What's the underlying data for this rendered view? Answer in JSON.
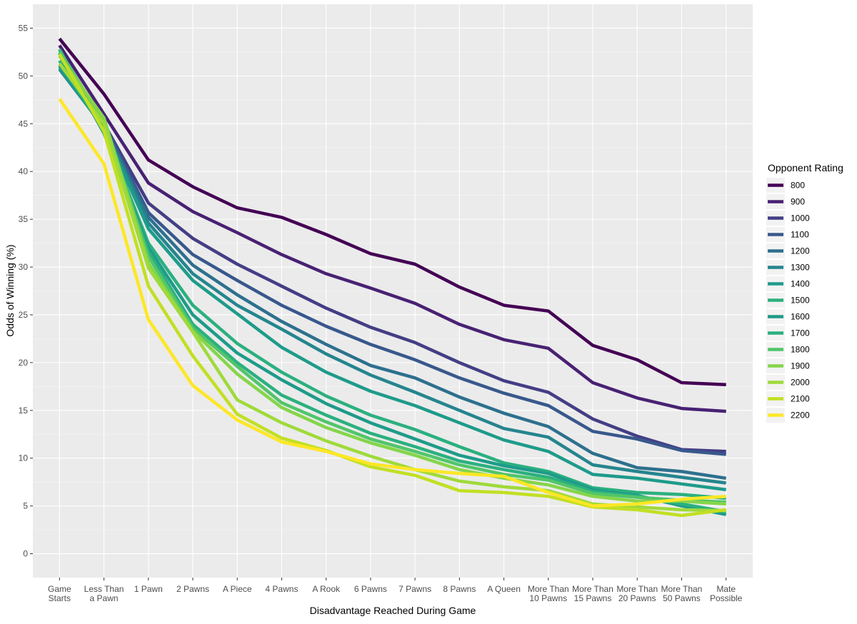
{
  "chart_data": {
    "type": "line",
    "xlabel": "Disadvantage Reached During Game",
    "ylabel": "Odds of Winning (%)",
    "ylim": [
      -2.5,
      57.5
    ],
    "yticks": [
      0,
      5,
      10,
      15,
      20,
      25,
      30,
      35,
      40,
      45,
      50,
      55
    ],
    "grid": true,
    "legend_title": "Opponent Rating",
    "legend_position": "right",
    "categories": [
      [
        "Game",
        "Starts"
      ],
      [
        "Less Than",
        "a Pawn"
      ],
      [
        "1 Pawn"
      ],
      [
        "2 Pawns"
      ],
      [
        "A Piece"
      ],
      [
        "4 Pawns"
      ],
      [
        "A Rook"
      ],
      [
        "6 Pawns"
      ],
      [
        "7 Pawns"
      ],
      [
        "8 Pawns"
      ],
      [
        "A Queen"
      ],
      [
        "More Than",
        "10 Pawns"
      ],
      [
        "More Than",
        "15 Pawns"
      ],
      [
        "More Than",
        "20 Pawns"
      ],
      [
        "More Than",
        "50 Pawns"
      ],
      [
        "Mate",
        "Possible"
      ]
    ],
    "series": [
      {
        "name": "800",
        "color": "#440154",
        "values": [
          53.9,
          48.1,
          41.2,
          38.4,
          36.2,
          35.2,
          33.4,
          31.4,
          30.3,
          27.9,
          26.0,
          25.4,
          21.8,
          20.3,
          17.9,
          17.7
        ]
      },
      {
        "name": "900",
        "color": "#482173",
        "values": [
          53.2,
          46.0,
          38.8,
          35.8,
          33.6,
          31.3,
          29.3,
          27.8,
          26.2,
          24.0,
          22.4,
          21.5,
          17.9,
          16.3,
          15.2,
          14.9
        ]
      },
      {
        "name": "1000",
        "color": "#433E85",
        "values": [
          52.4,
          45.0,
          36.7,
          33.0,
          30.3,
          28.0,
          25.7,
          23.7,
          22.1,
          20.0,
          18.1,
          16.9,
          14.1,
          12.3,
          10.9,
          10.7
        ]
      },
      {
        "name": "1100",
        "color": "#38588C",
        "values": [
          51.6,
          44.9,
          35.7,
          31.3,
          28.6,
          26.0,
          23.8,
          21.9,
          20.3,
          18.4,
          16.8,
          15.5,
          12.8,
          12.0,
          10.8,
          10.4
        ]
      },
      {
        "name": "1200",
        "color": "#2D708E",
        "values": [
          51.1,
          44.7,
          35.2,
          30.2,
          27.1,
          24.3,
          21.9,
          19.7,
          18.4,
          16.4,
          14.7,
          13.3,
          10.5,
          9.0,
          8.6,
          7.9
        ]
      },
      {
        "name": "1300",
        "color": "#25858E",
        "values": [
          50.7,
          44.6,
          34.6,
          29.3,
          26.0,
          23.5,
          20.9,
          18.7,
          16.9,
          15.0,
          13.1,
          12.2,
          9.3,
          8.6,
          8.0,
          7.4
        ]
      },
      {
        "name": "1400",
        "color": "#1E9B8A",
        "values": [
          50.9,
          44.5,
          34.0,
          28.6,
          25.1,
          21.6,
          19.0,
          17.0,
          15.5,
          13.7,
          11.9,
          10.7,
          8.3,
          7.9,
          7.3,
          6.7
        ]
      },
      {
        "name": "1500",
        "color": "#2BB07F",
        "values": [
          51.6,
          44.3,
          32.5,
          26.0,
          22.0,
          19.0,
          16.5,
          14.5,
          13.0,
          11.2,
          9.5,
          8.6,
          6.9,
          6.4,
          6.2,
          5.8
        ]
      },
      {
        "name": "1600",
        "color": "#1E9B8A",
        "values": [
          52.4,
          44.0,
          32.0,
          25.0,
          21.0,
          18.2,
          15.7,
          13.7,
          12.0,
          10.3,
          9.2,
          8.4,
          6.7,
          6.1,
          5.0,
          4.1
        ]
      },
      {
        "name": "1700",
        "color": "#2BB07F",
        "values": [
          52.8,
          44.3,
          31.6,
          24.0,
          20.0,
          16.6,
          14.5,
          12.6,
          11.2,
          9.7,
          8.8,
          8.0,
          6.5,
          6.0,
          5.2,
          4.4
        ]
      },
      {
        "name": "1800",
        "color": "#51C56A",
        "values": [
          52.6,
          45.2,
          31.1,
          23.6,
          19.6,
          15.8,
          13.8,
          12.0,
          10.7,
          9.3,
          8.3,
          7.7,
          6.3,
          5.9,
          5.6,
          5.4
        ]
      },
      {
        "name": "1900",
        "color": "#85D54A",
        "values": [
          52.1,
          45.6,
          30.4,
          23.3,
          18.8,
          15.3,
          13.2,
          11.6,
          10.3,
          8.8,
          7.9,
          7.2,
          6.0,
          5.5,
          5.5,
          5.2
        ]
      },
      {
        "name": "2000",
        "color": "#9FDA3A",
        "values": [
          51.3,
          45.0,
          29.9,
          23.2,
          16.1,
          13.7,
          11.8,
          10.2,
          8.8,
          7.6,
          7.0,
          6.6,
          5.2,
          4.9,
          4.6,
          4.5
        ]
      },
      {
        "name": "2100",
        "color": "#C2DF23",
        "values": [
          52.3,
          44.2,
          28.0,
          20.7,
          14.6,
          12.1,
          10.8,
          9.1,
          8.2,
          6.6,
          6.4,
          6.0,
          4.9,
          4.6,
          4.0,
          4.6
        ]
      },
      {
        "name": "2200",
        "color": "#FDE725",
        "values": [
          47.6,
          40.8,
          24.5,
          17.6,
          14.0,
          11.7,
          10.7,
          9.4,
          8.8,
          8.4,
          8.1,
          6.4,
          5.0,
          5.2,
          5.7,
          6.0
        ]
      }
    ]
  }
}
